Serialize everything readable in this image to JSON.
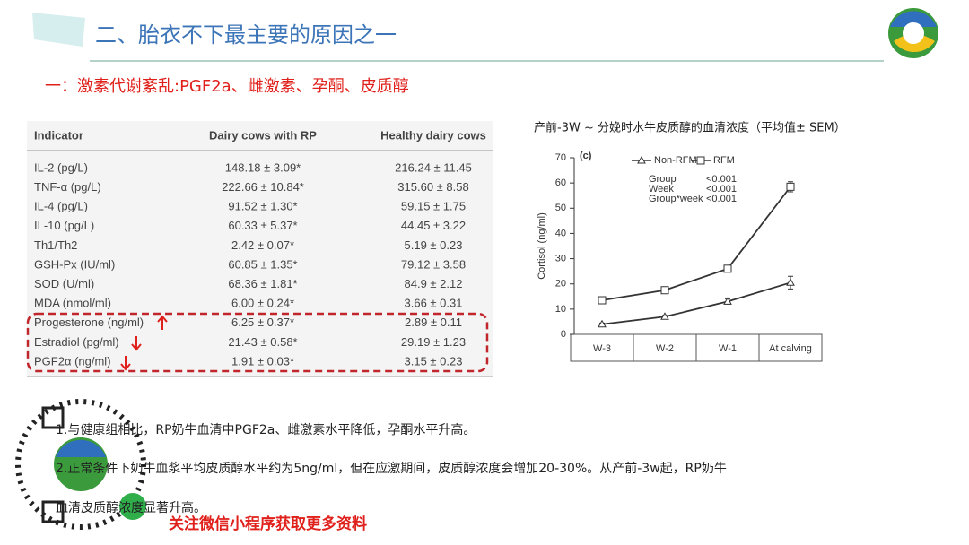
{
  "header": {
    "title": "二、胎衣不下最主要的原因之一"
  },
  "subtitle": "一：激素代谢紊乱:PGF2a、雌激素、孕酮、皮质醇",
  "table": {
    "columns": [
      "Indicator",
      "Dairy cows with RP",
      "Healthy dairy cows"
    ],
    "rows": [
      [
        "IL-2 (pg/L)",
        "148.18 ± 3.09*",
        "216.24 ± 11.45"
      ],
      [
        "TNF-α (pg/L)",
        "222.66 ± 10.84*",
        "315.60 ± 8.58"
      ],
      [
        "IL-4 (pg/L)",
        "91.52 ± 1.30*",
        "59.15 ± 1.75"
      ],
      [
        "IL-10 (pg/L)",
        "60.33 ± 5.37*",
        "44.45 ± 3.22"
      ],
      [
        "Th1/Th2",
        "2.42 ± 0.07*",
        "5.19 ± 0.23"
      ],
      [
        "GSH-Px (IU/ml)",
        "60.85 ± 1.35*",
        "79.12 ± 3.58"
      ],
      [
        "SOD (U/ml)",
        "68.36 ± 1.81*",
        "84.9 ± 2.12"
      ],
      [
        "MDA (nmol/ml)",
        "6.00 ± 0.24*",
        "3.66 ± 0.31"
      ],
      [
        "Progesterone (ng/ml)",
        "6.25 ± 0.37*",
        "2.89 ± 0.11"
      ],
      [
        "Estradiol (pg/ml)",
        "21.43 ± 0.58*",
        "29.19 ± 1.23"
      ],
      [
        "PGF2α (ng/ml)",
        "1.91 ± 0.03*",
        "3.15 ± 0.23"
      ]
    ]
  },
  "chart_data": {
    "type": "line",
    "title": "产前-3W ~ 分娩时水牛皮质醇的血清浓度（平均值± SEM）",
    "panel_label": "(c)",
    "y_label": "Cortisol (ng/ml)",
    "categories": [
      "W-3",
      "W-2",
      "W-1",
      "At calving"
    ],
    "series": [
      {
        "name": "Non-RFM",
        "color": "#333333",
        "marker": "triangle",
        "values": [
          4,
          7,
          13,
          20.5
        ],
        "errors": [
          0.5,
          0.5,
          1,
          2.5
        ]
      },
      {
        "name": "RFM",
        "color": "#333333",
        "marker": "square",
        "values": [
          13.5,
          17.5,
          26,
          58.5
        ],
        "errors": [
          0.5,
          0.5,
          0.8,
          2
        ]
      }
    ],
    "stats": [
      {
        "label": "Group",
        "value": "<0.001"
      },
      {
        "label": "Week",
        "value": "<0.001"
      },
      {
        "label": "Group*week",
        "value": "<0.001"
      }
    ],
    "ylim": [
      0,
      70
    ],
    "yticks": [
      0,
      10,
      20,
      30,
      40,
      50,
      60,
      70
    ]
  },
  "notes": [
    "1.与健康组相比，RP奶牛血清中PGF2a、雌激素水平降低，孕酮水平升高。",
    "2.正常条件下奶牛血浆平均皮质醇水平约为5ng/ml，但在应激期间，皮质醇浓度会增加20-30%。从产前-3w起，RP奶牛",
    "血清皮质醇浓度显著升高。"
  ],
  "footer": "关注微信小程序获取更多资料"
}
